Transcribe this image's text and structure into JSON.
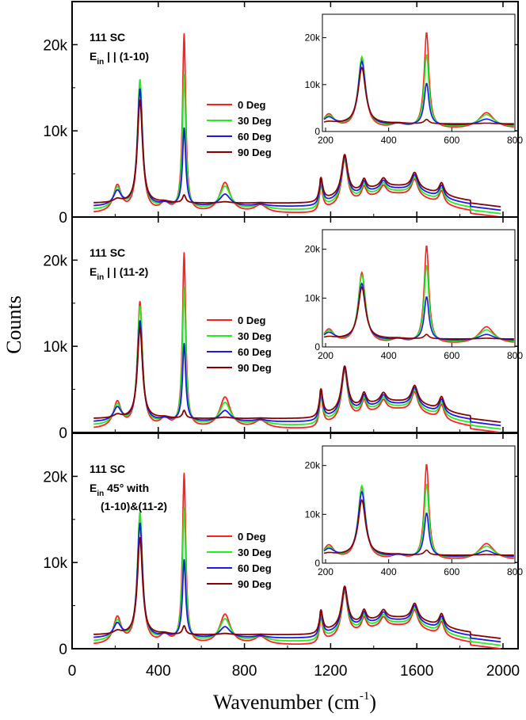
{
  "figure": {
    "ylabel": "Counts",
    "xlabel_main": "Wavenumber (cm",
    "xlabel_sup": "-1",
    "xlabel_close": ")"
  },
  "chart_data": [
    {
      "type": "line",
      "panel": "top",
      "annotation": [
        "111 SC",
        "E",
        "in",
        " | |  (1-10)"
      ],
      "xlim": [
        0,
        2070
      ],
      "ylim": [
        0,
        25000
      ],
      "xticks": [
        0,
        400,
        800,
        1200,
        1600,
        2000
      ],
      "yticks": [
        0,
        10000,
        20000
      ],
      "ytick_labels": [
        "0",
        "10k",
        "20k"
      ],
      "legend_position": "center",
      "peaks": [
        [
          210,
          1.0
        ],
        [
          315,
          1.0
        ],
        [
          430,
          0.0
        ],
        [
          520,
          1.0
        ],
        [
          710,
          1.0
        ],
        [
          875,
          0.0
        ],
        [
          1155,
          2800
        ],
        [
          1265,
          5200
        ],
        [
          1355,
          1400
        ],
        [
          1445,
          1100
        ],
        [
          1590,
          2000
        ],
        [
          1715,
          1500
        ]
      ],
      "series": [
        {
          "name": "0 Deg",
          "color": "#ff2020",
          "amps": [
            3100,
            14900,
            1000,
            20600,
            3500,
            900
          ]
        },
        {
          "name": "30 Deg",
          "color": "#22ee22",
          "amps": [
            2400,
            15000,
            700,
            15500,
            2700,
            600
          ]
        },
        {
          "name": "60 Deg",
          "color": "#1a1aee",
          "amps": [
            1700,
            13600,
            300,
            9000,
            1400,
            250
          ]
        },
        {
          "name": "90 Deg",
          "color": "#8b0000",
          "amps": [
            400,
            12000,
            150,
            900,
            150,
            50
          ]
        }
      ],
      "inset": {
        "xlim": [
          190,
          800
        ],
        "ylim": [
          0,
          25000
        ],
        "xticks": [
          200,
          400,
          600,
          800
        ],
        "yticks": [
          0,
          10000,
          20000
        ],
        "ytick_labels": [
          "0",
          "10k",
          "20k"
        ]
      }
    },
    {
      "type": "line",
      "panel": "middle",
      "annotation": [
        "111 SC",
        "E",
        "in",
        " | |  (11-2)"
      ],
      "xlim": [
        0,
        2070
      ],
      "ylim": [
        0,
        25000
      ],
      "xticks": [
        0,
        400,
        800,
        1200,
        1600,
        2000
      ],
      "yticks": [
        0,
        10000,
        20000
      ],
      "ytick_labels": [
        "0",
        "10k",
        "20k"
      ],
      "legend_position": "center",
      "peaks": [
        [
          210,
          1.0
        ],
        [
          315,
          1.0
        ],
        [
          430,
          0.0
        ],
        [
          520,
          1.0
        ],
        [
          710,
          1.0
        ],
        [
          875,
          0.0
        ],
        [
          1155,
          3300
        ],
        [
          1265,
          5700
        ],
        [
          1355,
          1600
        ],
        [
          1445,
          1200
        ],
        [
          1590,
          2300
        ],
        [
          1715,
          1700
        ]
      ],
      "series": [
        {
          "name": "0 Deg",
          "color": "#ff2020",
          "amps": [
            3000,
            14600,
            1000,
            20200,
            3600,
            900
          ]
        },
        {
          "name": "30 Deg",
          "color": "#22ee22",
          "amps": [
            2300,
            13700,
            700,
            15800,
            2600,
            600
          ]
        },
        {
          "name": "60 Deg",
          "color": "#1a1aee",
          "amps": [
            1600,
            11700,
            300,
            9000,
            1300,
            250
          ]
        },
        {
          "name": "90 Deg",
          "color": "#8b0000",
          "amps": [
            400,
            10600,
            150,
            900,
            150,
            50
          ]
        }
      ],
      "inset": {
        "xlim": [
          190,
          800
        ],
        "ylim": [
          0,
          24000
        ],
        "xticks": [
          200,
          400,
          600,
          800
        ],
        "yticks": [
          0,
          10000,
          20000
        ],
        "ytick_labels": [
          "0",
          "10k",
          "20k"
        ]
      }
    },
    {
      "type": "line",
      "panel": "bottom",
      "annotation": [
        "111 SC",
        "E",
        "in",
        "   45° with",
        "(1-10)&(11-2)"
      ],
      "xlim": [
        0,
        2070
      ],
      "ylim": [
        0,
        25000
      ],
      "xticks": [
        0,
        400,
        800,
        1200,
        1600,
        2000
      ],
      "yticks": [
        0,
        10000,
        20000
      ],
      "ytick_labels": [
        "0",
        "10k",
        "20k"
      ],
      "legend_position": "center",
      "peaks": [
        [
          210,
          1.0
        ],
        [
          315,
          1.0
        ],
        [
          430,
          0.0
        ],
        [
          520,
          1.0
        ],
        [
          710,
          1.0
        ],
        [
          875,
          0.0
        ],
        [
          1155,
          2700
        ],
        [
          1265,
          5200
        ],
        [
          1355,
          1500
        ],
        [
          1445,
          1100
        ],
        [
          1590,
          2100
        ],
        [
          1715,
          1600
        ]
      ],
      "series": [
        {
          "name": "0 Deg",
          "color": "#ff2020",
          "amps": [
            3100,
            15000,
            1000,
            19700,
            3500,
            900
          ]
        },
        {
          "name": "30 Deg",
          "color": "#22ee22",
          "amps": [
            2300,
            14900,
            700,
            15300,
            2600,
            600
          ]
        },
        {
          "name": "60 Deg",
          "color": "#1a1aee",
          "amps": [
            1600,
            13300,
            300,
            9000,
            1300,
            250
          ]
        },
        {
          "name": "90 Deg",
          "color": "#8b0000",
          "amps": [
            400,
            11300,
            150,
            1000,
            150,
            50
          ]
        }
      ],
      "inset": {
        "xlim": [
          190,
          800
        ],
        "ylim": [
          0,
          24000
        ],
        "xticks": [
          200,
          400,
          600,
          800
        ],
        "yticks": [
          0,
          10000,
          20000
        ],
        "ytick_labels": [
          "0",
          "10k",
          "20k"
        ]
      }
    }
  ]
}
